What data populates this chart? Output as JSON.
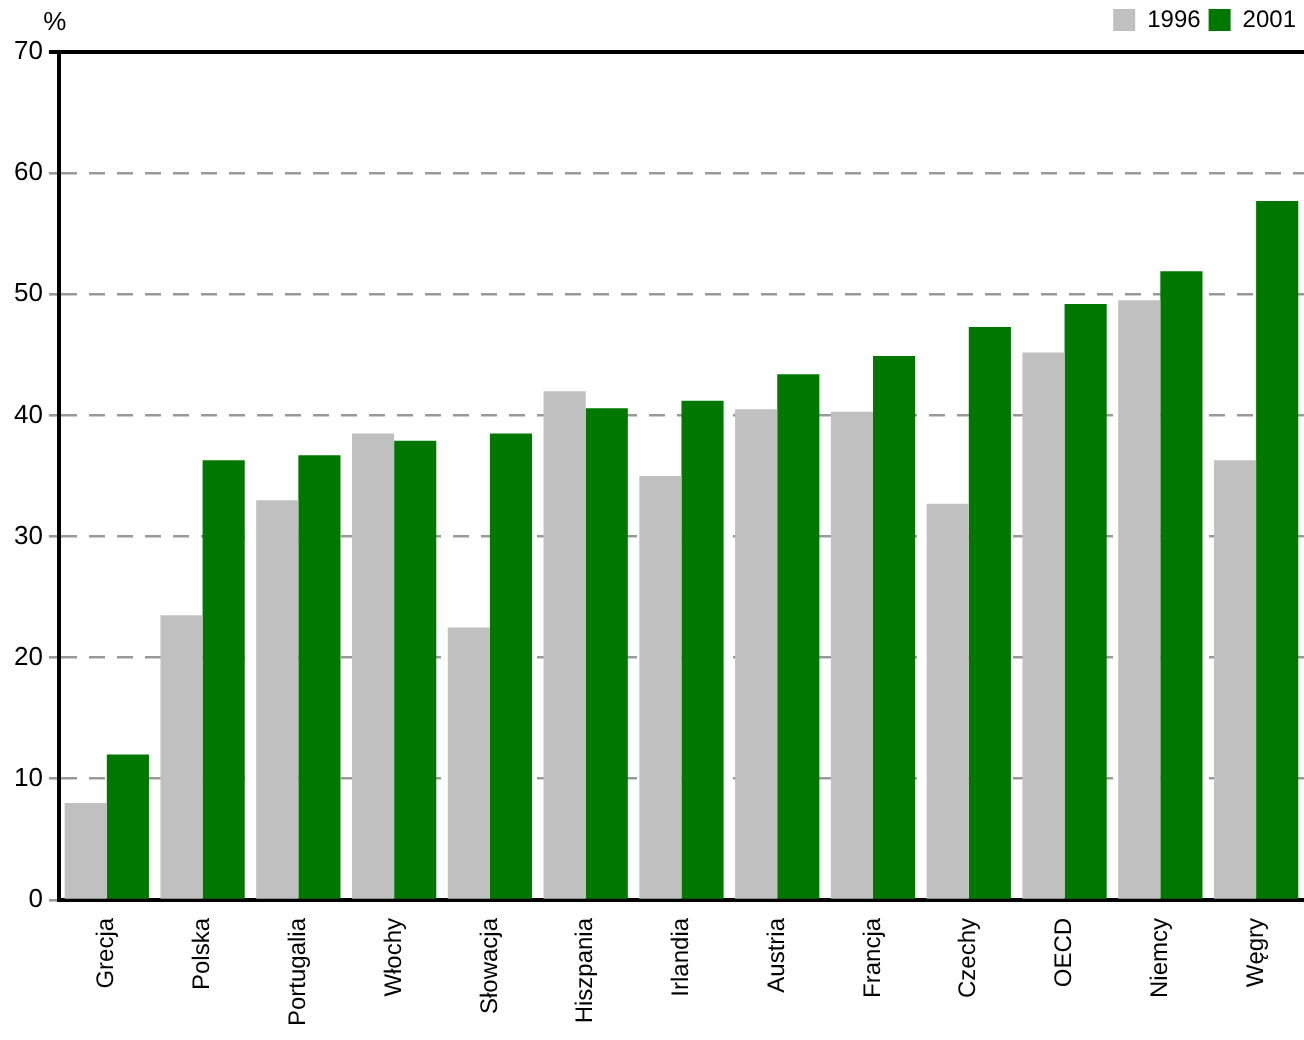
{
  "chart_data": {
    "type": "bar",
    "ylabel": "%",
    "categories": [
      "Grecja",
      "Polska",
      "Portugalia",
      "Włochy",
      "Słowacja",
      "Hiszpania",
      "Irlandia",
      "Austria",
      "Francja",
      "Czechy",
      "OECD",
      "Niemcy",
      "Węgry"
    ],
    "series": [
      {
        "name": "1996",
        "color": "#c0c0c0",
        "values": [
          8,
          23.5,
          33,
          38.5,
          22.5,
          42,
          35,
          40.5,
          40.3,
          32.7,
          45.2,
          49.5,
          36.3
        ]
      },
      {
        "name": "2001",
        "color": "#007800",
        "values": [
          12,
          36.3,
          36.7,
          37.9,
          38.5,
          40.6,
          41.2,
          43.4,
          44.9,
          47.3,
          49.2,
          51.9,
          57.7
        ]
      }
    ],
    "ylim": [
      0,
      70
    ],
    "yticks": [
      0,
      10,
      20,
      30,
      40,
      50,
      60,
      70
    ],
    "grid": "y",
    "legend": "top right"
  }
}
